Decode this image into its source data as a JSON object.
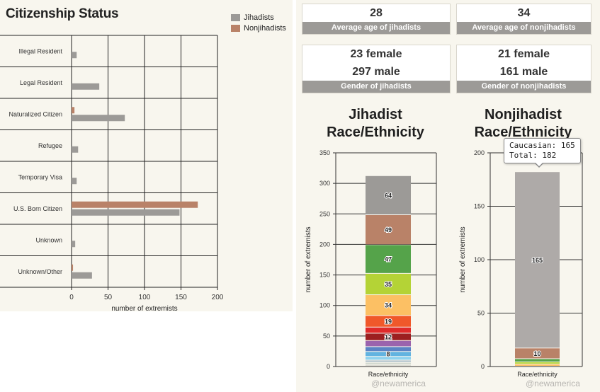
{
  "citizenship": {
    "title": "Citizenship Status",
    "legend": [
      {
        "label": "Jihadists",
        "color": "#9c9a97"
      },
      {
        "label": "Nonjihadists",
        "color": "#b98268"
      }
    ],
    "xlabel": "number of extremists",
    "watermark": ""
  },
  "stats": [
    {
      "values": [
        "28"
      ],
      "caption": "Average age of jihadists"
    },
    {
      "values": [
        "34"
      ],
      "caption": "Average age of nonjihadists"
    },
    {
      "values": [
        "23 female",
        "297 male"
      ],
      "caption": "Gender of jihadists"
    },
    {
      "values": [
        "21 female",
        "161 male"
      ],
      "caption": "Gender of nonjihadists"
    }
  ],
  "jihadist_race": {
    "title_line1": "Jihadist",
    "title_line2": "Race/Ethnicity",
    "ylabel": "number of extremists",
    "category": "Race/ethnicity",
    "watermark": "@newamerica"
  },
  "nonjihadist_race": {
    "title_line1": "Nonjihadist",
    "title_line2": "Race/Ethnicity",
    "ylabel": "number of extremists",
    "category": "Race/ethnicity",
    "watermark": "@newamerica",
    "tooltip_line1": "Caucasian: 165",
    "tooltip_line2": "Total: 182"
  },
  "chart_data": [
    {
      "type": "bar",
      "orientation": "horizontal",
      "title": "Citizenship Status",
      "categories": [
        "Illegal Resident",
        "Legal Resident",
        "Naturalized Citizen",
        "Refugee",
        "Temporary Visa",
        "U.S. Born Citizen",
        "Unknown",
        "Unknown/Other"
      ],
      "series": [
        {
          "name": "Jihadists",
          "color": "#9c9a97",
          "values": [
            7,
            38,
            73,
            9,
            7,
            148,
            5,
            28
          ]
        },
        {
          "name": "Nonjihadists",
          "color": "#b98268",
          "values": [
            0,
            0,
            4,
            0,
            0,
            173,
            0,
            2
          ]
        }
      ],
      "xlabel": "number of extremists",
      "xlim": [
        0,
        200
      ],
      "xticks": [
        0,
        50,
        100,
        150,
        200
      ],
      "grid": true,
      "legend_position": "top-right"
    },
    {
      "type": "bar",
      "stacked": true,
      "title": "Jihadist Race/Ethnicity",
      "categories": [
        "Race/ethnicity"
      ],
      "ylabel": "number of extremists",
      "ylim": [
        0,
        350
      ],
      "yticks": [
        0,
        50,
        100,
        150,
        200,
        250,
        300,
        350
      ],
      "grid": true,
      "segments_top_to_bottom": [
        {
          "value": 64,
          "color": "#9c9a97",
          "label": "64"
        },
        {
          "value": 49,
          "color": "#b98268",
          "label": "49"
        },
        {
          "value": 47,
          "color": "#55a34a",
          "label": "47"
        },
        {
          "value": 35,
          "color": "#b4d336",
          "label": "35"
        },
        {
          "value": 34,
          "color": "#fcc064",
          "label": "34"
        },
        {
          "value": 19,
          "color": "#f0582a",
          "label": "19"
        },
        {
          "value": 10,
          "color": "#df2a2a",
          "label": ""
        },
        {
          "value": 12,
          "color": "#9c1f20",
          "label": "12"
        },
        {
          "value": 10,
          "color": "#9b63ad",
          "label": ""
        },
        {
          "value": 8,
          "color": "#5b83c4",
          "label": ""
        },
        {
          "value": 8,
          "color": "#62b3e0",
          "label": "8"
        },
        {
          "value": 6,
          "color": "#8ed2ef",
          "label": ""
        },
        {
          "value": 4,
          "color": "#b9c7d0",
          "label": ""
        },
        {
          "value": 3,
          "color": "#cdd6cc",
          "label": ""
        },
        {
          "value": 3,
          "color": "#dcdcd4",
          "label": ""
        }
      ]
    },
    {
      "type": "bar",
      "stacked": true,
      "title": "Nonjihadist Race/Ethnicity",
      "categories": [
        "Race/ethnicity"
      ],
      "ylabel": "number of extremists",
      "ylim": [
        0,
        200
      ],
      "yticks": [
        0,
        50,
        100,
        150,
        200
      ],
      "grid": true,
      "segments_top_to_bottom": [
        {
          "value": 165,
          "color": "#aeaaa8",
          "label": "165"
        },
        {
          "value": 10,
          "color": "#b98268",
          "label": "10"
        },
        {
          "value": 3,
          "color": "#55a34a",
          "label": ""
        },
        {
          "value": 2,
          "color": "#b4d336",
          "label": ""
        },
        {
          "value": 2,
          "color": "#fcc064",
          "label": ""
        }
      ]
    }
  ]
}
